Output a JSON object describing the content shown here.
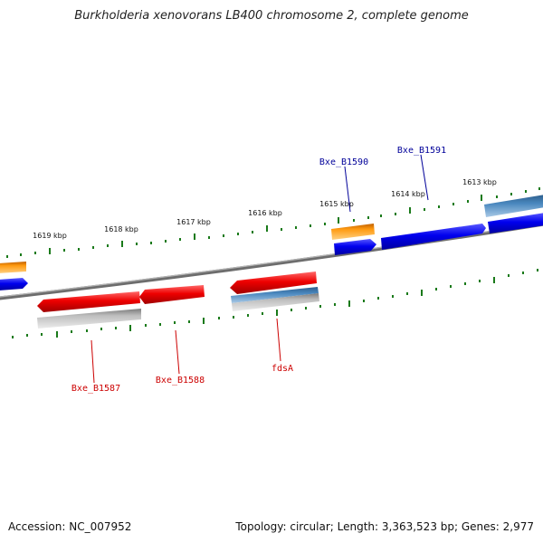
{
  "title": "Burkholderia xenovorans LB400 chromosome 2, complete genome",
  "accession": "Accession: NC_007952",
  "topology": "Topology: circular; Length: 3,363,523 bp; Genes: 2,977",
  "colors": {
    "backbone": "#808080",
    "tick": "#1a7a1a",
    "forward_cds": "#0000ee",
    "forward_label": "#000099",
    "reverse_cds": "#ee0000",
    "reverse_label": "#cc0000",
    "orange_feature": "#ff9900",
    "steel_feature": "#4682b4",
    "gray_feature": "#bbbbbb"
  },
  "ticks": {
    "outer": [
      "1619 kbp",
      "1618 kbp",
      "1617 kbp",
      "1616 kbp",
      "1615 kbp",
      "1614 kbp",
      "1613 kbp"
    ]
  },
  "gene_labels": {
    "forward": [
      "Bxe_B1590",
      "Bxe_B1591"
    ],
    "reverse": [
      "Bxe_B1587",
      "Bxe_B1588",
      "fdsA"
    ]
  }
}
